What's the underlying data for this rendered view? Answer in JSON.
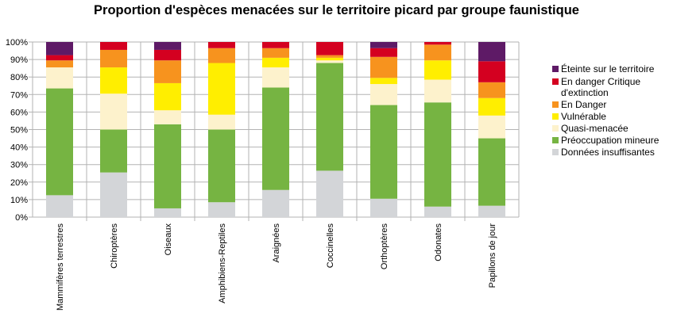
{
  "chart_data": {
    "type": "bar",
    "stacked": true,
    "title": "Proportion d'espèces menacées sur le territoire picard par groupe faunistique",
    "xlabel": "",
    "ylabel": "",
    "ylim": [
      0,
      100
    ],
    "yticks": [
      "0%",
      "10%",
      "20%",
      "30%",
      "40%",
      "50%",
      "60%",
      "70%",
      "80%",
      "90%",
      "100%"
    ],
    "grid": true,
    "legend_position": "right",
    "categories": [
      "Mammifères terrestres",
      "Chiroptères",
      "Oiseaux",
      "Amphibiens-Reptiles",
      "Araignées",
      "Coccinelles",
      "Orthoptères",
      "Odonates",
      "Papillons de jour"
    ],
    "series": [
      {
        "name": "Données insuffisantes",
        "color": "#d3d5d8",
        "values": [
          12.5,
          25.5,
          5,
          8.5,
          15.5,
          26.5,
          10.5,
          6,
          6.5
        ]
      },
      {
        "name": "Préoccupation mineure",
        "color": "#76b442",
        "values": [
          61,
          24.5,
          48,
          41.5,
          58.5,
          61.5,
          53.5,
          59.5,
          38.5
        ]
      },
      {
        "name": "Quasi-menacée",
        "color": "#fdf2cc",
        "values": [
          12,
          20.5,
          8,
          8.5,
          11.5,
          1.5,
          12,
          13,
          13
        ]
      },
      {
        "name": "Vulnérable",
        "color": "#ffee00",
        "values": [
          0,
          15,
          15.5,
          29.5,
          5.5,
          1.5,
          3.5,
          11,
          10
        ]
      },
      {
        "name": "En Danger",
        "color": "#f7931e",
        "values": [
          4,
          10,
          13,
          8.5,
          5.5,
          1.5,
          12,
          9,
          9
        ]
      },
      {
        "name": "En danger Critique d'extinction",
        "color": "#d40020",
        "values": [
          3,
          4.5,
          6,
          3.5,
          3.5,
          7.5,
          5,
          1.5,
          12
        ]
      },
      {
        "name": "Éteinte sur le territoire",
        "color": "#5e1a66",
        "values": [
          7.5,
          0,
          4.5,
          0,
          0,
          0,
          3.5,
          0,
          11
        ]
      }
    ]
  },
  "legend_order": [
    6,
    5,
    4,
    3,
    2,
    1,
    0
  ]
}
